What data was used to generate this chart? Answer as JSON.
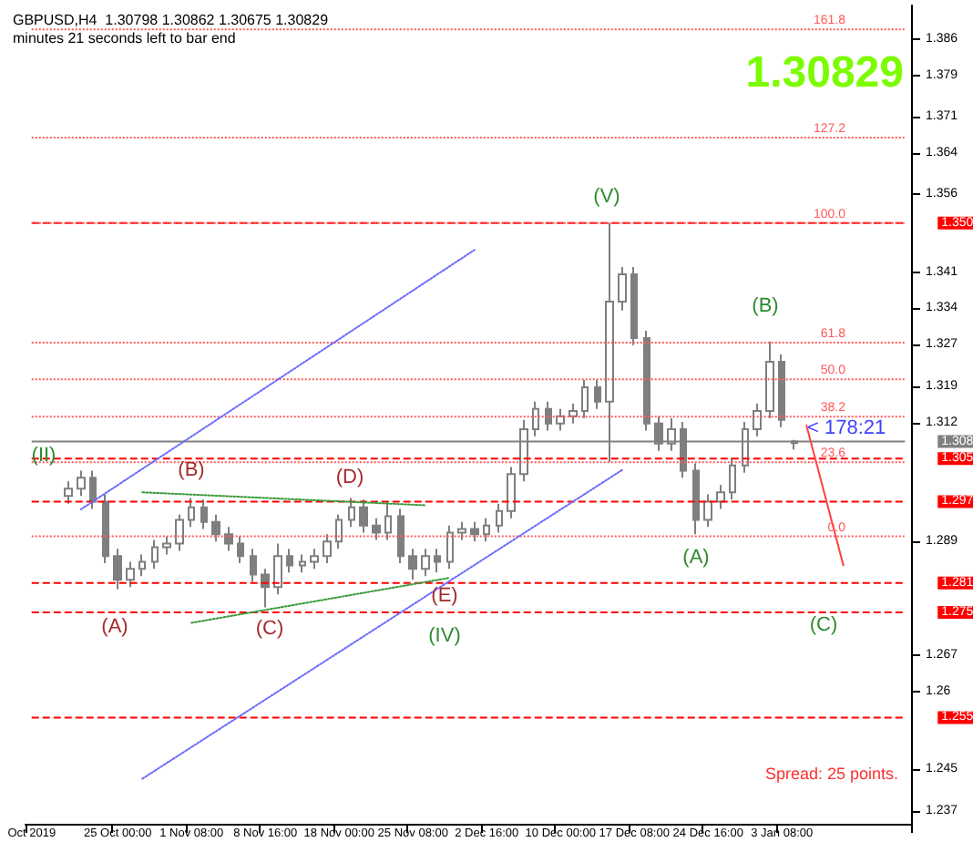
{
  "chart_data": {
    "type": "candlestick",
    "title": "GBPUSD,H4  1.30798 1.30862 1.30675 1.30829",
    "subtitle": "minutes 21 seconds left to bar end",
    "color": "#7f7f7f",
    "categories": [
      "Oct 2019",
      null,
      null,
      null,
      null,
      null,
      null,
      "25 Oct 00:00",
      null,
      null,
      null,
      null,
      null,
      "1 Nov 08:00",
      null,
      null,
      null,
      null,
      null,
      "8 Nov 16:00",
      null,
      null,
      null,
      null,
      null,
      "18 Nov 00:00",
      null,
      null,
      null,
      null,
      null,
      "25 Nov 08:00",
      null,
      null,
      null,
      null,
      null,
      "2 Dec 16:00",
      null,
      null,
      null,
      null,
      null,
      "10 Dec 00:00",
      null,
      null,
      null,
      null,
      null,
      "17 Dec 08:00",
      null,
      null,
      null,
      null,
      null,
      "24 Dec 16:00",
      null,
      null,
      null,
      null,
      null,
      "3 Jan 08:00",
      null,
      null,
      null,
      null,
      null,
      null,
      null,
      null,
      null,
      null
    ],
    "ohlc": [
      null,
      null,
      null,
      [
        1.2978,
        1.3006,
        1.2963,
        1.2992
      ],
      [
        1.2992,
        1.3027,
        1.2978,
        1.3013
      ],
      [
        1.3013,
        1.3027,
        1.2953,
        1.2967
      ],
      [
        1.2967,
        1.2981,
        1.2848,
        1.2862
      ],
      [
        1.2862,
        1.2876,
        1.2798,
        1.2816
      ],
      [
        1.2816,
        1.2851,
        1.2802,
        1.2837
      ],
      [
        1.2837,
        1.2865,
        1.2823,
        1.2851
      ],
      [
        1.2851,
        1.2893,
        1.2837,
        1.2879
      ],
      [
        1.2879,
        1.29,
        1.2865,
        1.2886
      ],
      [
        1.2886,
        1.2942,
        1.2872,
        1.2932
      ],
      [
        1.2932,
        1.2974,
        1.2918,
        1.2956
      ],
      [
        1.2956,
        1.2971,
        1.2914,
        1.2928
      ],
      [
        1.2928,
        1.2942,
        1.289,
        1.2904
      ],
      [
        1.2904,
        1.2918,
        1.2872,
        1.2886
      ],
      [
        1.2886,
        1.29,
        1.2848,
        1.2862
      ],
      [
        1.2862,
        1.2876,
        1.2812,
        1.2826
      ],
      [
        1.2826,
        1.2837,
        1.2763,
        1.2802
      ],
      [
        1.2802,
        1.2886,
        1.2788,
        1.2862
      ],
      [
        1.2862,
        1.2876,
        1.283,
        1.2844
      ],
      [
        1.2844,
        1.2865,
        1.283,
        1.2851
      ],
      [
        1.2851,
        1.2876,
        1.2837,
        1.2862
      ],
      [
        1.2862,
        1.2904,
        1.2848,
        1.289
      ],
      [
        1.289,
        1.2942,
        1.2876,
        1.2932
      ],
      [
        1.2932,
        1.2974,
        1.2918,
        1.2956
      ],
      [
        1.2956,
        1.2971,
        1.2907,
        1.2921
      ],
      [
        1.2921,
        1.2935,
        1.2893,
        1.2907
      ],
      [
        1.2907,
        1.2967,
        1.2893,
        1.2939
      ],
      [
        1.2939,
        1.2953,
        1.2848,
        1.2862
      ],
      [
        1.2862,
        1.2876,
        1.2816,
        1.2837
      ],
      [
        1.2837,
        1.2876,
        1.2823,
        1.2862
      ],
      [
        1.2862,
        1.2876,
        1.283,
        1.2851
      ],
      [
        1.2851,
        1.2921,
        1.2837,
        1.2907
      ],
      [
        1.2907,
        1.2928,
        1.2893,
        1.2914
      ],
      [
        1.2914,
        1.2928,
        1.289,
        1.2904
      ],
      [
        1.2904,
        1.2935,
        1.289,
        1.2921
      ],
      [
        1.2921,
        1.2963,
        1.2907,
        1.2949
      ],
      [
        1.2949,
        1.3034,
        1.2935,
        1.302
      ],
      [
        1.302,
        1.3125,
        1.3006,
        1.3107
      ],
      [
        1.3107,
        1.316,
        1.3093,
        1.3146
      ],
      [
        1.3146,
        1.316,
        1.3104,
        1.3118
      ],
      [
        1.3118,
        1.3146,
        1.3104,
        1.3132
      ],
      [
        1.3132,
        1.3156,
        1.3118,
        1.3142
      ],
      [
        1.3142,
        1.3202,
        1.3128,
        1.3188
      ],
      [
        1.3188,
        1.3202,
        1.3146,
        1.316
      ],
      [
        1.316,
        1.3505,
        1.3044,
        1.3353
      ],
      [
        1.3353,
        1.342,
        1.3336,
        1.3406
      ],
      [
        1.3406,
        1.342,
        1.3269,
        1.3283
      ],
      [
        1.3283,
        1.3297,
        1.3104,
        1.3118
      ],
      [
        1.3118,
        1.3132,
        1.3065,
        1.3079
      ],
      [
        1.3079,
        1.3128,
        1.3065,
        1.3107
      ],
      [
        1.3107,
        1.3121,
        1.3013,
        1.3027
      ],
      [
        1.3027,
        1.3041,
        1.2904,
        1.2932
      ],
      [
        1.2932,
        1.2981,
        1.2918,
        1.2967
      ],
      [
        1.2967,
        1.2999,
        1.2953,
        1.2985
      ],
      [
        1.2985,
        1.3051,
        1.2971,
        1.3037
      ],
      [
        1.3037,
        1.3121,
        1.3023,
        1.3107
      ],
      [
        1.3107,
        1.3156,
        1.3093,
        1.3142
      ],
      [
        1.3142,
        1.3276,
        1.3128,
        1.3237
      ],
      [
        1.3237,
        1.3251,
        1.3111,
        1.3125
      ],
      [
        1.30798,
        1.30862,
        1.30675,
        1.30829
      ],
      null,
      null,
      null,
      null,
      null,
      null,
      null,
      null,
      null
    ],
    "series": [
      {
        "type": "line",
        "color": "#6b6bff",
        "line_style": "dotted",
        "values": [
          null,
          null,
          null,
          null,
          1.2952,
          null,
          null,
          null,
          null,
          null,
          null,
          null,
          null,
          null,
          null,
          null,
          null,
          null,
          null,
          null,
          null,
          null,
          null,
          null,
          null,
          null,
          null,
          null,
          null,
          null,
          null,
          null,
          null,
          null,
          null,
          null,
          1.3453,
          null,
          null,
          null,
          null,
          null,
          null,
          null,
          null,
          null,
          null,
          null,
          null,
          null,
          null,
          null,
          null,
          null,
          null,
          null,
          null,
          null,
          null,
          null,
          null,
          null,
          null,
          null,
          null,
          null,
          null,
          null,
          null,
          null,
          null,
          null
        ]
      },
      {
        "type": "line",
        "color": "#6b6bff",
        "line_style": "dotted",
        "values": [
          null,
          null,
          null,
          null,
          null,
          null,
          null,
          null,
          null,
          1.2432,
          null,
          null,
          null,
          null,
          null,
          null,
          null,
          null,
          null,
          null,
          null,
          null,
          null,
          null,
          null,
          null,
          null,
          null,
          null,
          null,
          null,
          null,
          null,
          null,
          null,
          null,
          null,
          null,
          null,
          null,
          null,
          null,
          null,
          null,
          null,
          null,
          null,
          null,
          1.3028,
          null,
          null,
          null,
          null,
          null,
          null,
          null,
          null,
          null,
          null,
          null,
          null,
          null,
          null,
          null,
          null,
          null,
          null,
          null,
          null,
          null,
          null,
          null
        ]
      },
      {
        "type": "line",
        "color": "#3a9a3a",
        "line_style": "dotted",
        "values": [
          null,
          null,
          null,
          null,
          null,
          null,
          null,
          null,
          null,
          1.2985,
          null,
          null,
          null,
          null,
          null,
          null,
          null,
          null,
          null,
          null,
          null,
          null,
          null,
          null,
          null,
          null,
          null,
          null,
          null,
          null,
          null,
          null,
          1.296,
          null,
          null,
          null,
          null,
          null,
          null,
          null,
          null,
          null,
          null,
          null,
          null,
          null,
          null,
          null,
          null,
          null,
          null,
          null,
          null,
          null,
          null,
          null,
          null,
          null,
          null,
          null,
          null,
          null,
          null,
          null,
          null,
          null,
          null,
          null,
          null,
          null,
          null,
          null
        ]
      },
      {
        "type": "line",
        "color": "#3a9a3a",
        "line_style": "dotted",
        "values": [
          null,
          null,
          null,
          null,
          null,
          null,
          null,
          null,
          null,
          null,
          null,
          null,
          null,
          1.2733,
          null,
          null,
          null,
          null,
          null,
          null,
          null,
          null,
          null,
          null,
          null,
          null,
          null,
          null,
          null,
          null,
          null,
          null,
          null,
          null,
          1.282,
          null,
          null,
          null,
          null,
          null,
          null,
          null,
          null,
          null,
          null,
          null,
          null,
          null,
          null,
          null,
          null,
          null,
          null,
          null,
          null,
          null,
          null,
          null,
          null,
          null,
          null,
          null,
          null,
          null,
          null,
          null,
          null,
          null,
          null,
          null,
          null,
          null
        ]
      },
      {
        "type": "line",
        "color": "#ff4040",
        "line_style": "solid",
        "values": [
          null,
          null,
          null,
          null,
          null,
          null,
          null,
          null,
          null,
          null,
          null,
          null,
          null,
          null,
          null,
          null,
          null,
          null,
          null,
          null,
          null,
          null,
          null,
          null,
          null,
          null,
          null,
          null,
          null,
          null,
          null,
          null,
          null,
          null,
          null,
          null,
          null,
          null,
          null,
          null,
          null,
          null,
          null,
          null,
          null,
          null,
          null,
          null,
          null,
          null,
          null,
          null,
          null,
          null,
          null,
          null,
          null,
          null,
          null,
          null,
          null,
          null,
          null,
          1.3114,
          null,
          null,
          1.2844,
          null,
          null,
          null,
          null,
          null
        ]
      }
    ],
    "marker": "none",
    "ylim": [
      1.2345,
      1.3925
    ],
    "yticks": [
      1.237,
      1.245,
      1.26,
      1.267,
      1.289,
      1.312,
      1.319,
      1.327,
      1.334,
      1.341,
      1.356,
      1.364,
      1.371,
      1.379,
      1.386
    ],
    "ref_lines": [
      {
        "axis": "y",
        "value": 1.3505,
        "label": "1.350",
        "color": "#ff0000",
        "line_style": "dashed"
      },
      {
        "axis": "y",
        "value": 1.30829,
        "label": "1.308",
        "color": "#808080",
        "line_style": "solid"
      },
      {
        "axis": "y",
        "value": 1.305,
        "label": "1.305",
        "color": "#ff0000",
        "line_style": "dashed"
      },
      {
        "axis": "y",
        "value": 1.2967,
        "label": "1.297",
        "color": "#ff0000",
        "line_style": "dashed"
      },
      {
        "axis": "y",
        "value": 1.281,
        "label": "1.281",
        "color": "#ff0000",
        "line_style": "dashed"
      },
      {
        "axis": "y",
        "value": 1.2753,
        "label": "1.275",
        "color": "#ff0000",
        "line_style": "dashed"
      },
      {
        "axis": "y",
        "value": 1.255,
        "label": "1.255",
        "color": "#ff0000",
        "line_style": "dashed"
      },
      {
        "axis": "y",
        "value": 1.29,
        "color": "#ff5a5a",
        "line_style": "dotted"
      },
      {
        "axis": "y",
        "value": 1.3043,
        "color": "#ff5a5a",
        "line_style": "dotted"
      },
      {
        "axis": "y",
        "value": 1.3131,
        "color": "#ff5a5a",
        "line_style": "dotted"
      },
      {
        "axis": "y",
        "value": 1.3203,
        "color": "#ff5a5a",
        "line_style": "dotted"
      },
      {
        "axis": "y",
        "value": 1.3274,
        "color": "#ff5a5a",
        "line_style": "dotted"
      },
      {
        "axis": "y",
        "value": 1.3505,
        "color": "#ff5a5a",
        "line_style": "dotted"
      },
      {
        "axis": "y",
        "value": 1.367,
        "color": "#ff5a5a",
        "line_style": "dotted"
      },
      {
        "axis": "y",
        "value": 1.3879,
        "color": "#ff5a5a",
        "line_style": "dotted"
      }
    ],
    "annotations": [
      "1.30829",
      "Spread: 25 points.",
      "0.0",
      "23.6",
      "38.2",
      "50.0",
      "61.8",
      "100.0",
      "127.2",
      "161.8",
      "(II)",
      "(A)",
      "(B)",
      "(C)",
      "(D)",
      "(E)",
      "(IV)",
      "(V)",
      "(A)",
      "(B)",
      "(C)",
      "< 178:21"
    ]
  }
}
